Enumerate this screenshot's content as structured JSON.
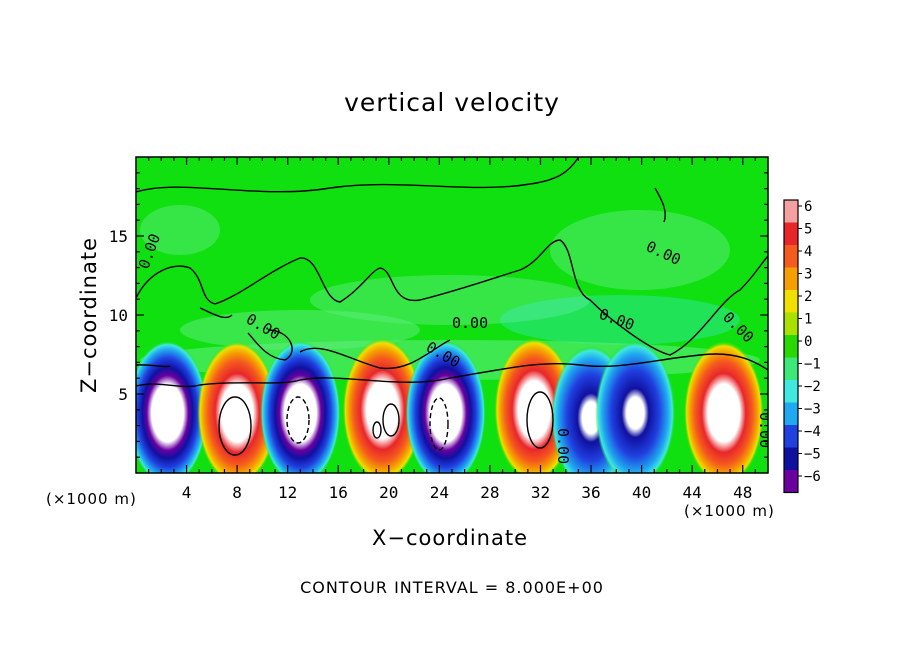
{
  "chart_data": {
    "type": "heatmap",
    "title": "vertical velocity",
    "xlabel": "X−coordinate",
    "ylabel": "Z−coordinate",
    "x_unit_left": "(×1000 m)",
    "x_unit_right": "(×1000 m)",
    "footer": "CONTOUR INTERVAL = 8.000E+00",
    "xlim": [
      0,
      50
    ],
    "ylim": [
      0,
      20
    ],
    "x_ticks": [
      "4",
      "8",
      "12",
      "16",
      "20",
      "24",
      "28",
      "32",
      "36",
      "40",
      "44",
      "48"
    ],
    "y_ticks": [
      "5",
      "10",
      "15"
    ],
    "colorbar": {
      "labels": [
        "6",
        "5",
        "4",
        "3",
        "2",
        "1",
        "0",
        "−1",
        "−2",
        "−3",
        "−4",
        "−5",
        "−6"
      ],
      "colors": [
        "#f4a0a0",
        "#e8262a",
        "#f55a1e",
        "#f5a000",
        "#f0e000",
        "#a8e000",
        "#28d800",
        "#3ce878",
        "#40e8e0",
        "#20a8f0",
        "#2040e0",
        "#1010a0",
        "#6a00a0"
      ]
    },
    "background_color": "#10e010",
    "contour_labels": [
      "0.00",
      "0.00",
      "0.00",
      "0.00",
      "0.00",
      "0.00",
      "0.00",
      "0.00",
      "0.00"
    ],
    "cells": [
      {
        "x": 2.5,
        "z": 3.8,
        "value": -6
      },
      {
        "x": 8.0,
        "z": 3.8,
        "value": 6
      },
      {
        "x": 13.0,
        "z": 3.8,
        "value": -6
      },
      {
        "x": 19.5,
        "z": 4.0,
        "value": 6
      },
      {
        "x": 24.5,
        "z": 3.8,
        "value": -6
      },
      {
        "x": 31.5,
        "z": 4.0,
        "value": 6
      },
      {
        "x": 36.0,
        "z": 3.5,
        "value": -5
      },
      {
        "x": 39.5,
        "z": 3.8,
        "value": -5
      },
      {
        "x": 46.5,
        "z": 3.8,
        "value": 6
      }
    ]
  }
}
